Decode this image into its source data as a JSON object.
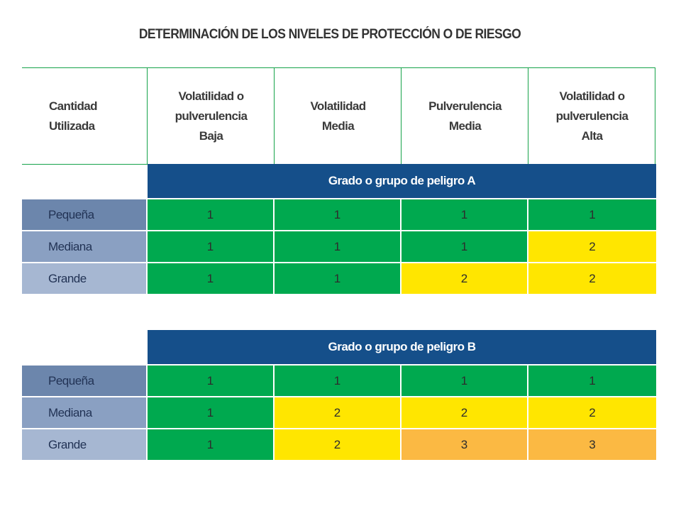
{
  "title": "DETERMINACIÓN DE LOS NIVELES DE PROTECCIÓN O DE RIESGO",
  "headers": {
    "cantidad": "Cantidad\nUtilizada",
    "vol_baja": "Volatilidad o\npulverulencia\nBaja",
    "vol_media": "Volatilidad\nMedia",
    "pulv_media": "Pulverulencia\nMedia",
    "vol_alta": "Volatilidad o\npulverulencia\nAlta"
  },
  "groups": [
    {
      "label": "Grado o grupo de peligro A",
      "rows": [
        {
          "label": "Pequeña",
          "values": [
            "1",
            "1",
            "1",
            "1"
          ],
          "colors": [
            "green",
            "green",
            "green",
            "green"
          ]
        },
        {
          "label": "Mediana",
          "values": [
            "1",
            "1",
            "1",
            "2"
          ],
          "colors": [
            "green",
            "green",
            "green",
            "yellow"
          ]
        },
        {
          "label": "Grande",
          "values": [
            "1",
            "1",
            "2",
            "2"
          ],
          "colors": [
            "green",
            "green",
            "yellow",
            "yellow"
          ]
        }
      ]
    },
    {
      "label": "Grado o grupo de peligro B",
      "rows": [
        {
          "label": "Pequeña",
          "values": [
            "1",
            "1",
            "1",
            "1"
          ],
          "colors": [
            "green",
            "green",
            "green",
            "green"
          ]
        },
        {
          "label": "Mediana",
          "values": [
            "1",
            "2",
            "2",
            "2"
          ],
          "colors": [
            "green",
            "yellow",
            "yellow",
            "yellow"
          ]
        },
        {
          "label": "Grande",
          "values": [
            "1",
            "2",
            "3",
            "3"
          ],
          "colors": [
            "green",
            "yellow",
            "orange",
            "orange"
          ]
        }
      ]
    }
  ],
  "colors": {
    "green": "#00a94f",
    "yellow": "#ffe600",
    "orange": "#fbb943",
    "band": "#154f8a",
    "header_border": "#16a34a"
  }
}
